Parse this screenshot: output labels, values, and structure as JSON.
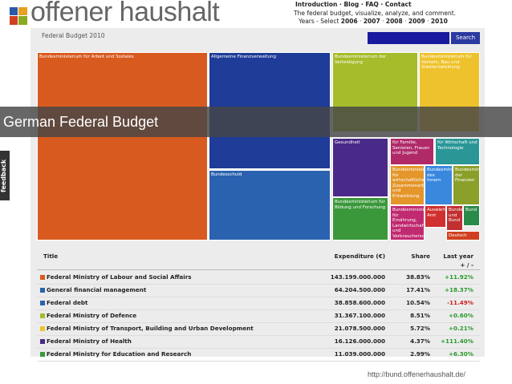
{
  "header": {
    "logo": "offener haushalt",
    "nav": [
      "Introduction",
      "Blog",
      "FAQ",
      "Contact"
    ],
    "tagline": "The federal budget, visualize, analyze, and comment.",
    "years_label": "Years - Select",
    "years": [
      "2006",
      "2007",
      "2008",
      "2009",
      "2010"
    ]
  },
  "panel": {
    "title": "Federal Budget 2010",
    "search_button": "Search"
  },
  "treemap": {
    "cells": [
      {
        "label": "Bundesministerium für Arbeit und Soziales"
      },
      {
        "label": "Allgemeine Finanzverwaltung"
      },
      {
        "label": "Bundesschuld"
      },
      {
        "label": "Bundesministerium der Verteidigung"
      },
      {
        "label": "Bundesministerium für Verkehr, Bau und Stadtentwicklung"
      },
      {
        "label": "Gesundheit"
      },
      {
        "label": "Bundesministerium für Bildung und Forschung"
      },
      {
        "label": "für Familie, Senioren, Frauen und Jugend"
      },
      {
        "label": "für Wirtschaft und Technologie"
      },
      {
        "label": "Bundesministerium für wirtschaftliche Zusammenarbeit und Entwicklung"
      },
      {
        "label": "Bundesministerium des Innern"
      },
      {
        "label": "Bundesministerium der Finanzen"
      },
      {
        "label": "Bundesministerium für Ernährung, Landwirtschaft und Verbraucherschutz"
      },
      {
        "label": "Auswärtiges Amt"
      },
      {
        "label": "Bundesministerium und Bund"
      },
      {
        "label": "Bund"
      },
      {
        "label": "Deutsch"
      }
    ]
  },
  "banner": "German Federal Budget",
  "feedback": "feedback",
  "table": {
    "columns": [
      "Title",
      "Expenditure (€)",
      "Share",
      "Last year + / -"
    ],
    "rows": [
      [
        "Federal Ministry of Labour and Social Affairs",
        "143.199.000.000",
        "38.83%",
        "+11.92%"
      ],
      [
        "General financial management",
        "64.204.500.000",
        "17.41%",
        "+18.37%"
      ],
      [
        "Federal debt",
        "38.858.600.000",
        "10.54%",
        "-11.49%"
      ],
      [
        "Federal Ministry of Defence",
        "31.367.100.000",
        "8.51%",
        "+0.60%"
      ],
      [
        "Federal Ministry of Transport, Building and Urban Development",
        "21.078.500.000",
        "5.72%",
        "+0.21%"
      ],
      [
        "Federal Ministry of Health",
        "16.126.000.000",
        "4.37%",
        "+111.40%"
      ],
      [
        "Federal Ministry for Education and Research",
        "11.039.000.000",
        "2.99%",
        "+6.30%"
      ]
    ]
  },
  "footer": {
    "url": "http://bund.offenerhaushalt.de/"
  }
}
